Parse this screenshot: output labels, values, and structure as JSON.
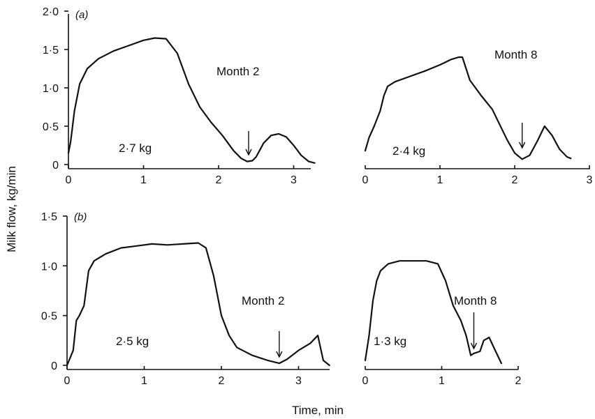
{
  "figure": {
    "ylabel": "Milk flow, kg/min",
    "xlabel": "Time, min"
  },
  "chart_data": [
    {
      "type": "line",
      "panel_label": "(a)",
      "annotation": "Month 2",
      "total_label": "2·7 kg",
      "x_ticks": [
        "0",
        "1",
        "2",
        "3"
      ],
      "y_ticks": [
        "0",
        "0·5",
        "1·0",
        "1·5",
        "2·0"
      ],
      "xlim": [
        0,
        3.3
      ],
      "ylim": [
        0,
        2.0
      ],
      "arrow_x": 2.4,
      "x": [
        0,
        0.03,
        0.08,
        0.15,
        0.25,
        0.4,
        0.6,
        0.8,
        1.0,
        1.15,
        1.3,
        1.45,
        1.6,
        1.75,
        1.9,
        2.05,
        2.2,
        2.3,
        2.38,
        2.45,
        2.5,
        2.6,
        2.7,
        2.8,
        2.9,
        3.0,
        3.1,
        3.2,
        3.28
      ],
      "y": [
        0.15,
        0.3,
        0.7,
        1.05,
        1.25,
        1.38,
        1.48,
        1.55,
        1.62,
        1.65,
        1.64,
        1.45,
        1.05,
        0.75,
        0.55,
        0.38,
        0.18,
        0.08,
        0.04,
        0.05,
        0.1,
        0.28,
        0.38,
        0.4,
        0.36,
        0.25,
        0.12,
        0.04,
        0.02
      ]
    },
    {
      "type": "line",
      "panel_label": "",
      "annotation": "Month 8",
      "total_label": "2·4 kg",
      "x_ticks": [
        "0",
        "1",
        "2",
        "3"
      ],
      "y_ticks": [],
      "xlim": [
        0,
        3.0
      ],
      "ylim": [
        0,
        2.0
      ],
      "arrow_x": 2.1,
      "x": [
        0,
        0.05,
        0.12,
        0.2,
        0.25,
        0.3,
        0.4,
        0.6,
        0.8,
        1.0,
        1.15,
        1.25,
        1.3,
        1.4,
        1.55,
        1.7,
        1.8,
        1.9,
        2.0,
        2.1,
        2.2,
        2.3,
        2.4,
        2.5,
        2.6,
        2.7,
        2.75
      ],
      "y": [
        0.18,
        0.35,
        0.5,
        0.7,
        0.9,
        1.02,
        1.08,
        1.15,
        1.22,
        1.3,
        1.37,
        1.4,
        1.4,
        1.1,
        0.9,
        0.72,
        0.52,
        0.32,
        0.15,
        0.07,
        0.12,
        0.3,
        0.5,
        0.38,
        0.2,
        0.1,
        0.08
      ]
    },
    {
      "type": "line",
      "panel_label": "(b)",
      "annotation": "Month 2",
      "total_label": "2·5 kg",
      "x_ticks": [
        "0",
        "1",
        "2",
        "3"
      ],
      "y_ticks": [
        "0",
        "0·5",
        "1·0",
        "1·5"
      ],
      "xlim": [
        0,
        3.4
      ],
      "ylim": [
        0,
        1.5
      ],
      "arrow_x": 2.75,
      "x": [
        0,
        0.08,
        0.12,
        0.16,
        0.22,
        0.28,
        0.35,
        0.5,
        0.7,
        0.9,
        1.1,
        1.3,
        1.5,
        1.7,
        1.8,
        1.9,
        2.0,
        2.1,
        2.2,
        2.4,
        2.6,
        2.75,
        2.85,
        3.0,
        3.15,
        3.25,
        3.32,
        3.4
      ],
      "y": [
        0,
        0.15,
        0.45,
        0.5,
        0.6,
        0.95,
        1.05,
        1.12,
        1.18,
        1.2,
        1.22,
        1.21,
        1.22,
        1.23,
        1.18,
        0.9,
        0.5,
        0.3,
        0.18,
        0.1,
        0.05,
        0.02,
        0.06,
        0.15,
        0.22,
        0.3,
        0.05,
        0.0
      ]
    },
    {
      "type": "line",
      "panel_label": "",
      "annotation": "Month 8",
      "total_label": "1·3 kg",
      "x_ticks": [
        "0",
        "1",
        "2"
      ],
      "y_ticks": [],
      "xlim": [
        0,
        2.0
      ],
      "ylim": [
        0,
        1.5
      ],
      "arrow_x": 1.42,
      "x": [
        0,
        0.05,
        0.1,
        0.15,
        0.2,
        0.3,
        0.45,
        0.6,
        0.8,
        0.95,
        1.05,
        1.15,
        1.25,
        1.32,
        1.38,
        1.42,
        1.5,
        1.55,
        1.62,
        1.7,
        1.78
      ],
      "y": [
        0.05,
        0.3,
        0.65,
        0.85,
        0.95,
        1.02,
        1.05,
        1.05,
        1.05,
        1.02,
        0.85,
        0.6,
        0.45,
        0.3,
        0.1,
        0.12,
        0.14,
        0.25,
        0.28,
        0.15,
        0.02
      ]
    }
  ]
}
